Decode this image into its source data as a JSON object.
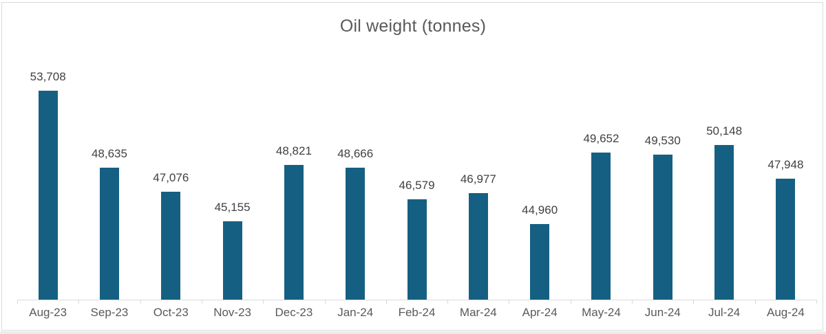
{
  "chart_data": {
    "type": "bar",
    "title": "Oil weight (tonnes)",
    "categories": [
      "Aug-23",
      "Sep-23",
      "Oct-23",
      "Nov-23",
      "Dec-23",
      "Jan-24",
      "Feb-24",
      "Mar-24",
      "Apr-24",
      "May-24",
      "Jun-24",
      "Jul-24",
      "Aug-24"
    ],
    "values": [
      53708,
      48635,
      47076,
      45155,
      48821,
      48666,
      46579,
      46977,
      44960,
      49652,
      49530,
      50148,
      47948
    ],
    "value_labels": [
      "53,708",
      "48,635",
      "47,076",
      "45,155",
      "48,821",
      "48,666",
      "46,579",
      "46,977",
      "44,960",
      "49,652",
      "49,530",
      "50,148",
      "47,948"
    ],
    "xlabel": "",
    "ylabel": "",
    "ylim": [
      40000,
      55600
    ],
    "grid": false,
    "legend": false,
    "colors": {
      "bar": "#156082",
      "title": "#595959",
      "data_label": "#404040",
      "axis_label": "#595959",
      "axis_line": "#D9D9D9"
    }
  }
}
